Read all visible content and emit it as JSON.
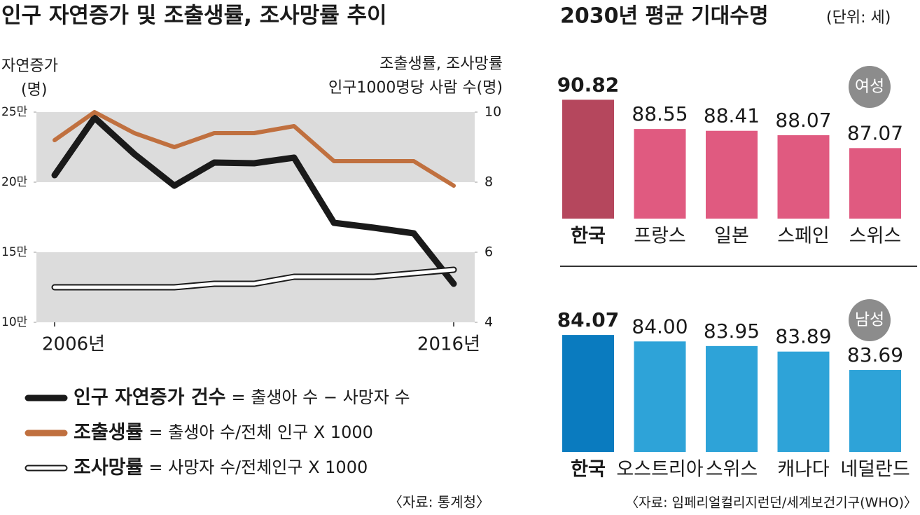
{
  "chart_data": [
    {
      "type": "line",
      "title": "인구 자연증가 및 조출생률, 조사망률 추이",
      "y_label": [
        "자연증가",
        "(명)"
      ],
      "y2_label": [
        "조출생률, 조사망률",
        "인구1000명당 사람 수(명)"
      ],
      "categories": [
        "2006년",
        null,
        null,
        null,
        null,
        null,
        null,
        null,
        null,
        null,
        "2016년"
      ],
      "ylim": [
        100000,
        250000
      ],
      "yticks": [
        {
          "value": 100000,
          "label": "10만"
        },
        {
          "value": 150000,
          "label": "15만"
        },
        {
          "value": 200000,
          "label": "20만"
        },
        {
          "value": 250000,
          "label": "25만"
        }
      ],
      "y2lim": [
        4,
        10
      ],
      "y2ticks": [
        4,
        6,
        8,
        10
      ],
      "bands": true,
      "band_color": "#dcdcdc",
      "series": [
        {
          "name": "인구 자연증가 건수",
          "description": "= 출생아 수 − 사망자 수",
          "color": "#1a1a1a",
          "axis": "y",
          "values": [
            205000,
            246000,
            220000,
            197500,
            214000,
            213500,
            217500,
            171000,
            167500,
            163500,
            127500
          ]
        },
        {
          "name": "조출생률",
          "description": "= 출생아 수/전체 인구 X 1000",
          "color": "#c0703f",
          "axis": "y2",
          "values": [
            9.2,
            10.0,
            9.4,
            9.0,
            9.4,
            9.4,
            9.6,
            8.6,
            8.6,
            8.6,
            7.9
          ]
        },
        {
          "name": "조사망률",
          "description": "= 사망자 수/전체인구 X 1000",
          "color": "#ffffff",
          "outline": "#1a1a1a",
          "axis": "y2",
          "values": [
            5.0,
            5.0,
            5.0,
            5.0,
            5.1,
            5.1,
            5.3,
            5.3,
            5.3,
            5.4,
            5.5
          ]
        }
      ],
      "source": "〈자료: 통계청〉"
    },
    {
      "type": "bar",
      "title": "2030년 평균 기대수명",
      "subtitle": "(단위: 세)",
      "panels": [
        {
          "label": "여성",
          "categories": [
            "한국",
            "프랑스",
            "일본",
            "스페인",
            "스위스"
          ],
          "values": [
            90.82,
            88.55,
            88.41,
            88.07,
            87.07
          ],
          "value_labels": [
            "90.82",
            "88.55",
            "88.41",
            "88.07",
            "87.07"
          ],
          "colors": [
            "#b5475d",
            "#e05a80",
            "#e05a80",
            "#e05a80",
            "#e05a80"
          ],
          "ylim": [
            81.6,
            91.6
          ]
        },
        {
          "label": "남성",
          "categories": [
            "한국",
            "오스트리아",
            "스위스",
            "캐나다",
            "네덜란드"
          ],
          "values": [
            84.07,
            84.0,
            83.95,
            83.89,
            83.69
          ],
          "value_labels": [
            "84.07",
            "84.00",
            "83.95",
            "83.89",
            "83.69"
          ],
          "colors": [
            "#0a7bbf",
            "#2ea3d8",
            "#2ea3d8",
            "#2ea3d8",
            "#2ea3d8"
          ],
          "ylim": [
            82.8,
            84.2
          ]
        }
      ],
      "source": "〈자료: 임페리얼컬리지런던/세계보건기구(WHO)〉"
    }
  ]
}
